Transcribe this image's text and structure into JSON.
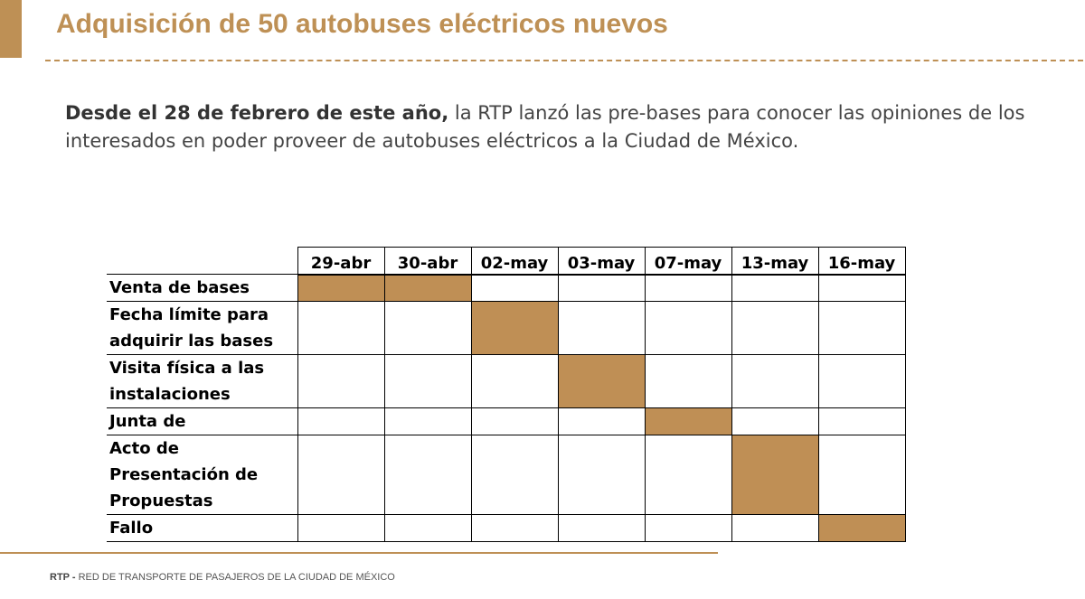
{
  "header": {
    "title": "Adquisición de 50 autobuses eléctricos nuevos",
    "accent_color": "#BE9055"
  },
  "intro": {
    "bold_text": "Desde el 28 de febrero de este año,",
    "text": " la RTP lanzó las pre-bases para conocer las opiniones de los interesados en poder proveer de autobuses eléctricos a la Ciudad de México."
  },
  "schedule": {
    "fill_color": "#BF8F55",
    "dates": [
      "29-abr",
      "30-abr",
      "02-may",
      "03-may",
      "07-may",
      "13-may",
      "16-may"
    ],
    "rows": [
      {
        "label": "Venta de bases",
        "active": [
          0,
          1
        ]
      },
      {
        "label": "Fecha límite para adquirir las bases",
        "active": [
          2
        ]
      },
      {
        "label": "Visita física a las instalaciones",
        "active": [
          3
        ]
      },
      {
        "label": "Junta de",
        "active": [
          4
        ]
      },
      {
        "label": "Acto de Presentación de Propuestas",
        "active": [
          5
        ]
      },
      {
        "label": "Fallo",
        "active": [
          6
        ]
      }
    ]
  },
  "footer": {
    "org_abbr": "RTP",
    "separator": " - ",
    "org_name": "RED DE TRANSPORTE DE PASAJEROS DE LA CIUDAD DE MÉXICO"
  }
}
